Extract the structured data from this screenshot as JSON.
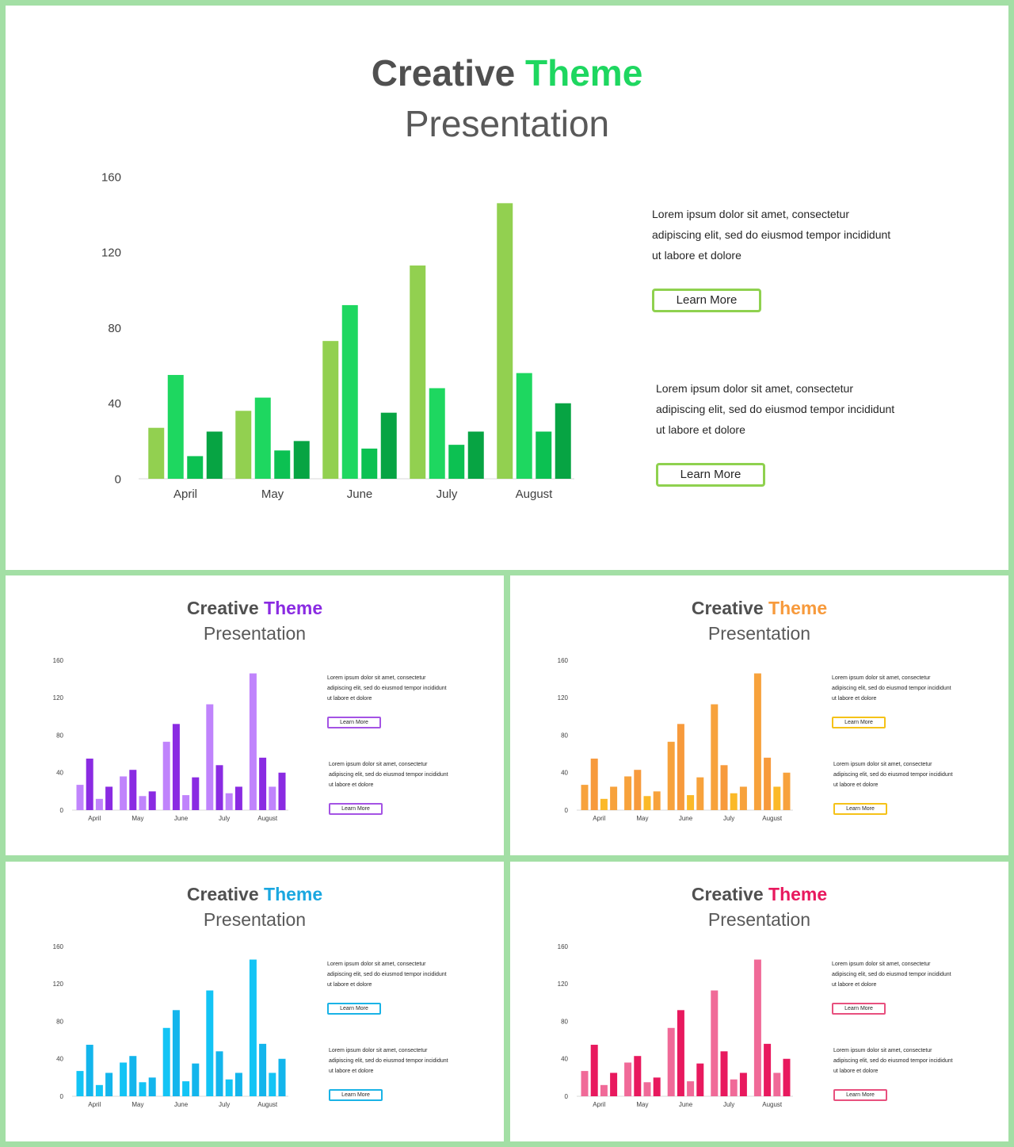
{
  "slides": [
    {
      "title_part1": "Creative",
      "title_part2": "Theme",
      "title_line2": "Presentation",
      "accent": "#1ed760",
      "button_border": "#8fd14f",
      "text_blocks": [
        {
          "lines": [
            "Lorem ipsum dolor sit amet, consectetur",
            "adipiscing elit, sed do eiusmod tempor incididunt",
            "ut labore et dolore"
          ],
          "button": "Learn More"
        },
        {
          "lines": [
            "Lorem ipsum dolor sit amet, consectetur",
            "adipiscing elit, sed do eiusmod tempor incididunt",
            "ut labore et dolore"
          ],
          "button": "Learn More"
        }
      ],
      "series_colors": [
        "#92d050",
        "#1ed760",
        "#0cc152",
        "#07a443"
      ]
    },
    {
      "title_part1": "Creative",
      "title_part2": "Theme",
      "title_line2": "Presentation",
      "accent": "#8a2be2",
      "button_border": "#a453e4",
      "text_blocks": [
        {
          "lines": [
            "Lorem ipsum dolor sit amet, consectetur",
            "adipiscing elit, sed do eiusmod tempor incididunt",
            "ut labore et dolore"
          ],
          "button": "Learn More"
        },
        {
          "lines": [
            "Lorem ipsum dolor sit amet, consectetur",
            "adipiscing elit, sed do eiusmod tempor incididunt",
            "ut labore et dolore"
          ],
          "button": "Learn More"
        }
      ],
      "series_colors": [
        "#c084fc",
        "#8a2be2",
        "#c084fc",
        "#8a2be2"
      ]
    },
    {
      "title_part1": "Creative",
      "title_part2": "Theme",
      "title_line2": "Presentation",
      "accent": "#f79a3c",
      "button_border": "#f5c218",
      "text_blocks": [
        {
          "lines": [
            "Lorem ipsum dolor sit amet, consectetur",
            "adipiscing elit, sed do eiusmod tempor incididunt",
            "ut labore et dolore"
          ],
          "button": "Learn More"
        },
        {
          "lines": [
            "Lorem ipsum dolor sit amet, consectetur",
            "adipiscing elit, sed do eiusmod tempor incididunt",
            "ut labore et dolore"
          ],
          "button": "Learn More"
        }
      ],
      "series_colors": [
        "#f7a23c",
        "#f79a3c",
        "#fbb928",
        "#f7a23c"
      ]
    },
    {
      "title_part1": "Creative",
      "title_part2": "Theme",
      "title_line2": "Presentation",
      "accent": "#1aa7e0",
      "button_border": "#1ab3e6",
      "text_blocks": [
        {
          "lines": [
            "Lorem ipsum dolor sit amet, consectetur",
            "adipiscing elit, sed do eiusmod tempor incididunt",
            "ut labore et dolore"
          ],
          "button": "Learn More"
        },
        {
          "lines": [
            "Lorem ipsum dolor sit amet, consectetur",
            "adipiscing elit, sed do eiusmod tempor incididunt",
            "ut labore et dolore"
          ],
          "button": "Learn More"
        }
      ],
      "series_colors": [
        "#13c4f5",
        "#13b5ec",
        "#13c4f5",
        "#13b5ec"
      ]
    },
    {
      "title_part1": "Creative",
      "title_part2": "Theme",
      "title_line2": "Presentation",
      "accent": "#e8195e",
      "button_border": "#e8507e",
      "text_blocks": [
        {
          "lines": [
            "Lorem ipsum dolor sit amet, consectetur",
            "adipiscing elit, sed do eiusmod tempor incididunt",
            "ut labore et dolore"
          ],
          "button": "Learn More"
        },
        {
          "lines": [
            "Lorem ipsum dolor sit amet, consectetur",
            "adipiscing elit, sed do eiusmod tempor incididunt",
            "ut labore et dolore"
          ],
          "button": "Learn More"
        }
      ],
      "series_colors": [
        "#f06a98",
        "#e8195e",
        "#f06a98",
        "#e8195e"
      ]
    }
  ],
  "chart_data": {
    "type": "bar",
    "categories": [
      "April",
      "May",
      "June",
      "July",
      "August"
    ],
    "series": [
      {
        "values": [
          27,
          36,
          73,
          113,
          146
        ]
      },
      {
        "values": [
          55,
          43,
          92,
          48,
          56
        ]
      },
      {
        "values": [
          12,
          15,
          16,
          18,
          25
        ]
      },
      {
        "values": [
          25,
          20,
          35,
          25,
          40
        ]
      }
    ],
    "y_ticks": [
      0,
      40,
      80,
      120,
      160
    ],
    "ylim": [
      0,
      160
    ],
    "grid": false,
    "legend": "none",
    "title": "",
    "xlabel": "",
    "ylabel": ""
  }
}
